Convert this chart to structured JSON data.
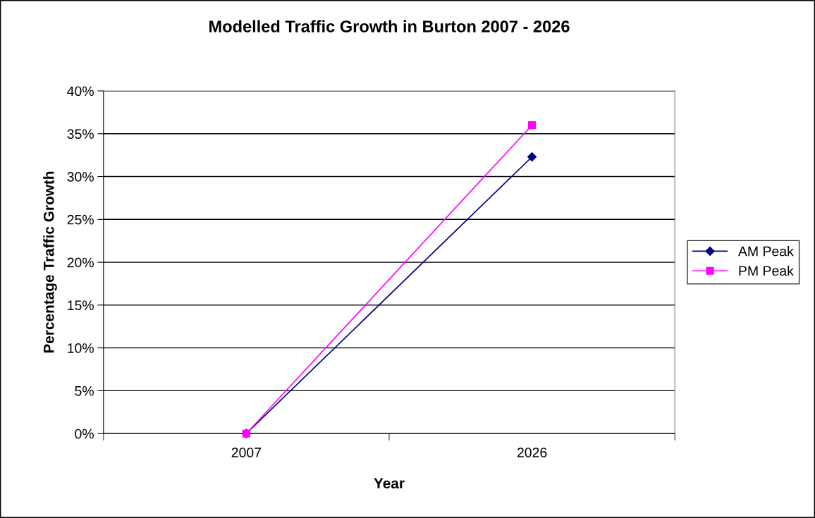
{
  "chart_data": {
    "type": "line",
    "title": "Modelled Traffic Growth in Burton 2007 - 2026",
    "xlabel": "Year",
    "ylabel": "Percentage Traffic Growth",
    "categories": [
      "2007",
      "2026"
    ],
    "series": [
      {
        "name": "AM Peak",
        "color": "#000080",
        "marker": "diamond",
        "values": [
          0,
          32.3
        ]
      },
      {
        "name": "PM Peak",
        "color": "#ff00ff",
        "marker": "square",
        "values": [
          0,
          36.0
        ]
      }
    ],
    "ylim": [
      0,
      40
    ],
    "yticks": [
      {
        "value": 0,
        "label": "0%"
      },
      {
        "value": 5,
        "label": "5%"
      },
      {
        "value": 10,
        "label": "10%"
      },
      {
        "value": 15,
        "label": "15%"
      },
      {
        "value": 20,
        "label": "20%"
      },
      {
        "value": 25,
        "label": "25%"
      },
      {
        "value": 30,
        "label": "30%"
      },
      {
        "value": 35,
        "label": "35%"
      },
      {
        "value": 40,
        "label": "40%"
      }
    ],
    "grid": "y",
    "legend": "right",
    "line_style": "solid"
  }
}
